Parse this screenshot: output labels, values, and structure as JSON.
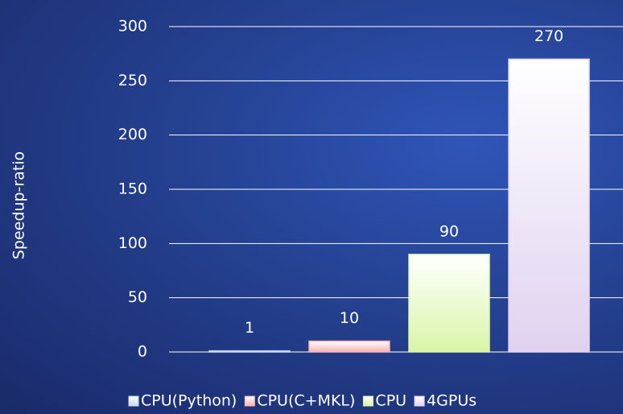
{
  "chart_data": {
    "type": "bar",
    "y_label": "Speedup-ratio",
    "categories": [
      "CPU(Python)",
      "CPU(C+MKL)",
      "CPU",
      "4GPUs"
    ],
    "values": [
      1,
      10,
      90,
      270
    ],
    "colors": [
      "#c9d9f5",
      "#f7b3b3",
      "#d9f5a8",
      "#e0d2f0"
    ],
    "ylim": [
      0,
      300
    ],
    "yticks": [
      0,
      50,
      100,
      150,
      200,
      250,
      300
    ],
    "grid": true,
    "legend": "bottom"
  }
}
